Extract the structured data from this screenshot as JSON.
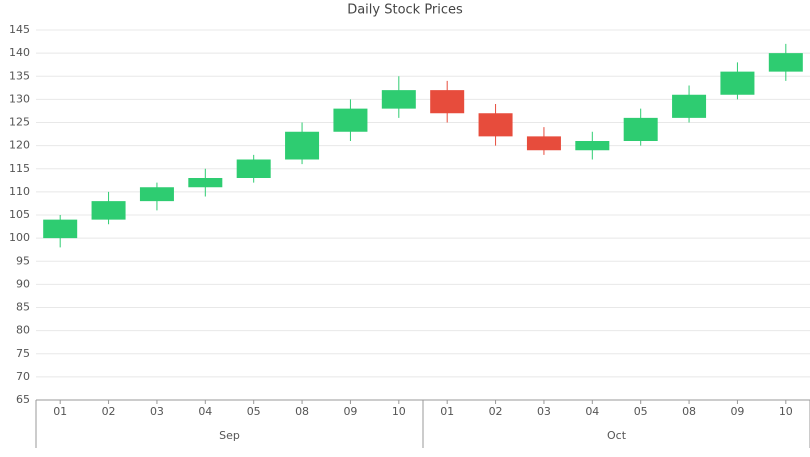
{
  "chart_data": {
    "type": "candlestick",
    "title": "Daily Stock Prices",
    "groups": [
      {
        "label": "Sep",
        "categories": [
          "01",
          "02",
          "03",
          "04",
          "05",
          "08",
          "09",
          "10"
        ]
      },
      {
        "label": "Oct",
        "categories": [
          "01",
          "02",
          "03",
          "04",
          "05",
          "08",
          "09",
          "10"
        ]
      }
    ],
    "open": [
      100,
      104,
      108,
      111,
      113,
      117,
      123,
      128,
      132,
      127,
      122,
      119,
      121,
      126,
      131,
      136
    ],
    "high": [
      105,
      110,
      112,
      115,
      118,
      125,
      130,
      135,
      134,
      129,
      124,
      123,
      128,
      133,
      138,
      142
    ],
    "low": [
      98,
      103,
      106,
      109,
      112,
      116,
      121,
      126,
      125,
      120,
      118,
      117,
      120,
      125,
      130,
      134
    ],
    "close": [
      104,
      108,
      111,
      113,
      117,
      123,
      128,
      132,
      127,
      122,
      119,
      121,
      126,
      131,
      136,
      140
    ],
    "up_color": "#2ecc71",
    "down_color": "#e74c3c",
    "ylim": [
      65,
      145
    ],
    "yticks": [
      65,
      70,
      75,
      80,
      85,
      90,
      95,
      100,
      105,
      110,
      115,
      120,
      125,
      130,
      135,
      140,
      145
    ],
    "grid": true
  }
}
